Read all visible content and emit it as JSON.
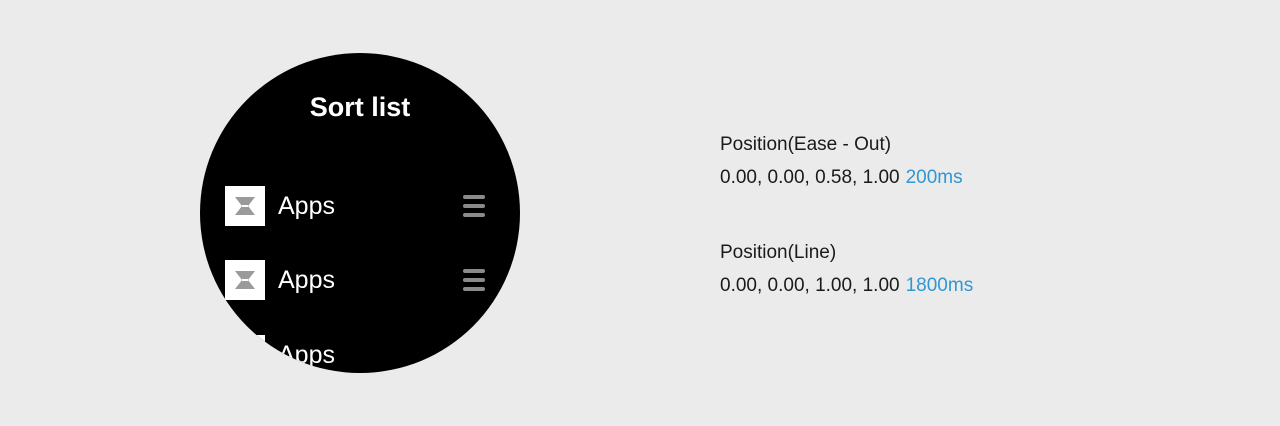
{
  "watch": {
    "title": "Sort list",
    "items": [
      {
        "label": "Apps",
        "icon": "app-icon"
      },
      {
        "label": "Apps",
        "icon": "app-icon"
      },
      {
        "label": "Apps",
        "icon": "app-icon"
      }
    ],
    "handle_icon": "reorder-handle-icon"
  },
  "specs": [
    {
      "label": "Position(Ease - Out)",
      "values": "0.00, 0.00, 0.58, 1.00",
      "duration": "200ms"
    },
    {
      "label": "Position(Line)",
      "values": "0.00, 0.00, 1.00, 1.00",
      "duration": "1800ms"
    }
  ],
  "colors": {
    "background": "#ebebeb",
    "watch_face": "#000000",
    "accent": "#2f97d2",
    "handle": "#8a8a8a"
  }
}
